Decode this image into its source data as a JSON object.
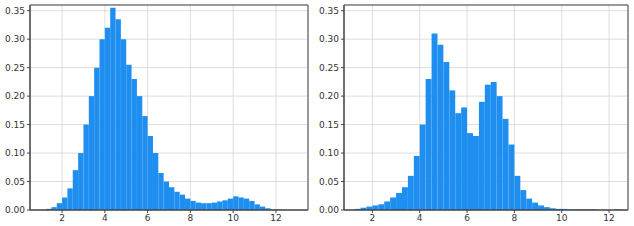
{
  "chart_data": [
    {
      "type": "histogram",
      "color": "#1f8ef1",
      "grid": true,
      "xlim": [
        0.5,
        13.5
      ],
      "ylim": [
        0,
        0.36
      ],
      "xticks": [
        2,
        4,
        6,
        8,
        10,
        12
      ],
      "yticks": [
        {
          "value": 0,
          "label": "0.00"
        },
        {
          "value": 0.05,
          "label": "0.05"
        },
        {
          "value": 0.1,
          "label": "0.10"
        },
        {
          "value": 0.15,
          "label": "0.15"
        },
        {
          "value": 0.2,
          "label": "0.20"
        },
        {
          "value": 0.25,
          "label": "0.25"
        },
        {
          "value": 0.3,
          "label": "0.30"
        },
        {
          "value": 0.35,
          "label": "0.35"
        }
      ],
      "bins": [
        1.25,
        1.5,
        1.75,
        2.0,
        2.25,
        2.5,
        2.75,
        3.0,
        3.25,
        3.5,
        3.75,
        4.0,
        4.25,
        4.5,
        4.75,
        5.0,
        5.25,
        5.5,
        5.75,
        6.0,
        6.25,
        6.5,
        6.75,
        7.0,
        7.25,
        7.5,
        7.75,
        8.0,
        8.25,
        8.5,
        8.75,
        9.0,
        9.25,
        9.5,
        9.75,
        10.0,
        10.25,
        10.5,
        10.75,
        11.0,
        11.25,
        11.5,
        11.75,
        12.0,
        12.25
      ],
      "values": [
        0.002,
        0.005,
        0.012,
        0.022,
        0.038,
        0.07,
        0.1,
        0.15,
        0.2,
        0.25,
        0.3,
        0.32,
        0.355,
        0.335,
        0.3,
        0.255,
        0.23,
        0.2,
        0.165,
        0.13,
        0.1,
        0.065,
        0.05,
        0.04,
        0.032,
        0.027,
        0.02,
        0.016,
        0.013,
        0.012,
        0.012,
        0.013,
        0.015,
        0.017,
        0.02,
        0.024,
        0.022,
        0.02,
        0.016,
        0.01,
        0.006,
        0.003,
        0.001,
        0.0005
      ]
    },
    {
      "type": "histogram",
      "color": "#1f8ef1",
      "grid": true,
      "xlim": [
        0.8,
        12.8
      ],
      "ylim": [
        0,
        0.36
      ],
      "xticks": [
        2,
        4,
        6,
        8,
        10,
        12
      ],
      "yticks": [
        {
          "value": 0,
          "label": "0.00"
        },
        {
          "value": 0.05,
          "label": "0.05"
        },
        {
          "value": 0.1,
          "label": "0.10"
        },
        {
          "value": 0.15,
          "label": "0.15"
        },
        {
          "value": 0.2,
          "label": "0.20"
        },
        {
          "value": 0.25,
          "label": "0.25"
        },
        {
          "value": 0.3,
          "label": "0.30"
        },
        {
          "value": 0.35,
          "label": "0.35"
        }
      ],
      "bins": [
        1.25,
        1.5,
        1.75,
        2.0,
        2.25,
        2.5,
        2.75,
        3.0,
        3.25,
        3.5,
        3.75,
        4.0,
        4.25,
        4.5,
        4.75,
        5.0,
        5.25,
        5.5,
        5.75,
        6.0,
        6.25,
        6.5,
        6.75,
        7.0,
        7.25,
        7.5,
        7.75,
        8.0,
        8.25,
        8.5,
        8.75,
        9.0,
        9.25,
        9.5,
        9.75,
        10.0,
        10.25,
        10.5,
        10.75,
        11.0,
        11.25,
        11.5,
        11.75,
        12.0,
        12.25,
        12.5,
        12.75
      ],
      "values": [
        0.002,
        0.004,
        0.006,
        0.008,
        0.01,
        0.015,
        0.022,
        0.03,
        0.04,
        0.06,
        0.095,
        0.15,
        0.23,
        0.31,
        0.29,
        0.26,
        0.21,
        0.17,
        0.18,
        0.135,
        0.13,
        0.19,
        0.22,
        0.225,
        0.2,
        0.16,
        0.115,
        0.06,
        0.035,
        0.02,
        0.013,
        0.008,
        0.005,
        0.003,
        0.002,
        0.002,
        0.001,
        0.001,
        0.001,
        0.001,
        0.001,
        0,
        0,
        0,
        0.001,
        0
      ]
    }
  ]
}
